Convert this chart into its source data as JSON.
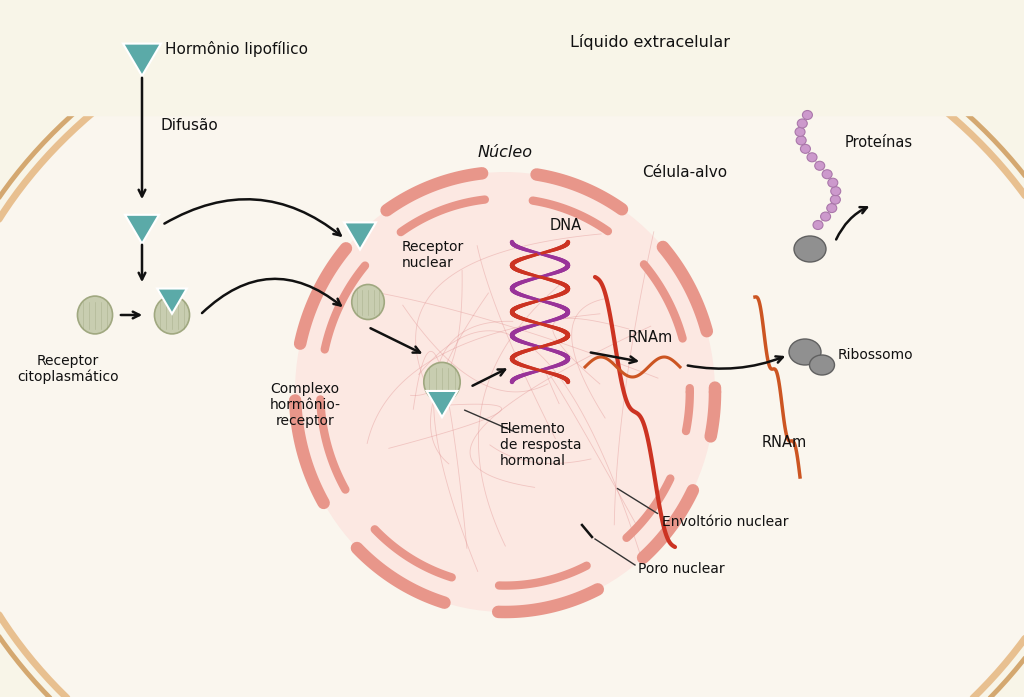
{
  "bg_outer": "#f8f5e8",
  "bg_cell": "#faf6ee",
  "membrane_color1": "#e8c090",
  "membrane_color2": "#d4a870",
  "nucleus_fill": "#fce8e2",
  "nucleus_border": "#e8968a",
  "chromatin_color": "#e8a090",
  "title_extracellular": "Líquido extracelular",
  "title_nucleo": "Núcleo",
  "title_celula": "Célula-alvo",
  "label_hormonio": "Hormônio lipofílico",
  "label_difusao": "Difusão",
  "label_receptor_cito": "Receptor\ncitoplasmático",
  "label_receptor_nuc": "Receptor\nnuclear",
  "label_complexo": "Complexo\nhormônio-\nreceptor",
  "label_dna": "DNA",
  "label_rnam1": "RNAm",
  "label_rnam2": "RNAm",
  "label_elemento": "Elemento\nde resposta\nhormonal",
  "label_envoltorio": "Envoltório nuclear",
  "label_poro": "Poro nuclear",
  "label_ribossomo": "Ribossomo",
  "label_proteinas": "Proteínas",
  "arrow_color": "#111111",
  "hormone_color": "#5baaa8",
  "receptor_color": "#c8cdb0",
  "dna_color1": "#cc3322",
  "dna_color2": "#993399",
  "rnam_color": "#cc5522",
  "ribosome_color": "#909090",
  "protein_chain_color": "#cc99cc"
}
